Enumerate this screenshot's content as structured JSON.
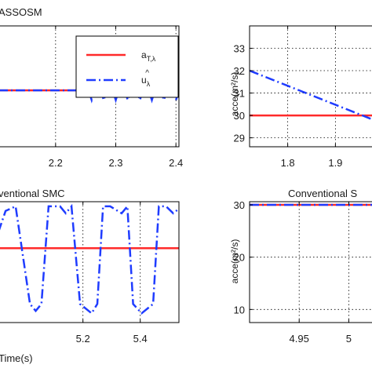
{
  "colors": {
    "target": "#ff2a2a",
    "estimate": "#1f3cff",
    "grid": "#000000",
    "axis": "#000000"
  },
  "chart_data": [
    {
      "type": "line",
      "title": "ASSOSM",
      "xlabel": "",
      "ylabel": "",
      "xlim": [
        2.105,
        2.405
      ],
      "ylim": [
        26.5,
        34.0
      ],
      "xticks": [
        2.2,
        2.3,
        2.4
      ],
      "xtick_labels": [
        "2.2",
        "2.3",
        "2.4"
      ],
      "grid": true,
      "legend": {
        "placement": "top-right",
        "entries": [
          "a_{Tλ}",
          "û_λ"
        ]
      },
      "series": [
        {
          "name": "a_{Tλ}",
          "style": "solid",
          "color_key": "target",
          "x": [
            2.105,
            2.405
          ],
          "y": [
            30.0,
            30.0
          ]
        },
        {
          "name": "û_λ",
          "style": "dashdot",
          "color_key": "estimate",
          "x": [
            2.105,
            2.24,
            2.25,
            2.26,
            2.27,
            2.28,
            2.29,
            2.3,
            2.31,
            2.32,
            2.33,
            2.34,
            2.35,
            2.36,
            2.37,
            2.38,
            2.39,
            2.4,
            2.405
          ],
          "y": [
            30.0,
            30.0,
            30.6,
            29.4,
            30.6,
            29.4,
            30.6,
            29.4,
            30.6,
            29.4,
            30.6,
            29.4,
            30.6,
            29.4,
            30.6,
            29.4,
            30.6,
            29.4,
            30.0
          ]
        }
      ]
    },
    {
      "type": "line",
      "title": "",
      "xlabel": "",
      "ylabel": "acce(m²/s)",
      "xlim": [
        1.72,
        1.98
      ],
      "ylim": [
        28.6,
        34.0
      ],
      "xticks": [
        1.8,
        1.9
      ],
      "xtick_labels": [
        "1.8",
        "1.9"
      ],
      "yticks": [
        29,
        30,
        31,
        32,
        33
      ],
      "ytick_labels": [
        "29",
        "30",
        "31",
        "32",
        "33"
      ],
      "grid": true,
      "series": [
        {
          "name": "",
          "style": "solid",
          "color_key": "target",
          "x": [
            1.72,
            1.98
          ],
          "y": [
            30.0,
            30.0
          ]
        },
        {
          "name": "",
          "style": "dashdot",
          "color_key": "estimate",
          "x": [
            1.72,
            1.98
          ],
          "y": [
            32.0,
            29.8
          ]
        }
      ]
    },
    {
      "type": "line",
      "title": "ventional SMC",
      "xlabel": "Time(s)",
      "ylabel": "",
      "xlim": [
        4.905,
        5.535
      ],
      "ylim": [
        8.0,
        34.0
      ],
      "xticks": [
        5.2,
        5.4
      ],
      "xtick_labels": [
        "5.2",
        "5.4"
      ],
      "grid": true,
      "series": [
        {
          "name": "",
          "style": "solid",
          "color_key": "target",
          "x": [
            4.905,
            5.535
          ],
          "y": [
            24.0,
            24.0
          ]
        },
        {
          "name": "",
          "style": "dashdot",
          "color_key": "estimate",
          "x": [
            4.905,
            4.93,
            4.965,
            5.015,
            5.035,
            5.055,
            5.08,
            5.12,
            5.14,
            5.16,
            5.19,
            5.23,
            5.25,
            5.27,
            5.295,
            5.335,
            5.355,
            5.375,
            5.405,
            5.445,
            5.465,
            5.49,
            5.515,
            5.535
          ],
          "y": [
            27.5,
            32.0,
            33.0,
            12.0,
            10.5,
            12.0,
            33.0,
            33.0,
            31.5,
            33.0,
            12.0,
            10.0,
            12.0,
            33.0,
            33.0,
            31.5,
            33.0,
            12.0,
            10.0,
            12.0,
            33.0,
            33.0,
            31.5,
            32.5
          ]
        }
      ]
    },
    {
      "type": "line",
      "title": "Conventional S",
      "xlabel": "",
      "ylabel": "acce(m²/s)",
      "xlim": [
        4.9,
        5.025
      ],
      "ylim": [
        7.5,
        30.6
      ],
      "xticks": [
        4.95,
        5.0
      ],
      "xtick_labels": [
        "4.95",
        "5"
      ],
      "yticks": [
        10,
        20,
        30
      ],
      "ytick_labels": [
        "10",
        "20",
        "30"
      ],
      "grid": true,
      "series": [
        {
          "name": "",
          "style": "solid",
          "color_key": "target",
          "x": [
            4.9,
            5.025
          ],
          "y": [
            30.0,
            30.0
          ]
        },
        {
          "name": "",
          "style": "dashdot",
          "color_key": "estimate",
          "x": [
            4.9,
            5.025
          ],
          "y": [
            30.0,
            30.0
          ]
        }
      ]
    }
  ],
  "panel_texts": {
    "p1_title": "ASSOSM",
    "p3_title": "ventional SMC",
    "p3_xlabel": "Time(s)",
    "p4_title": "Conventional S",
    "ylabel_top": "acce(m²/s)",
    "ylabel_bottom": "acce(m²/s)"
  }
}
